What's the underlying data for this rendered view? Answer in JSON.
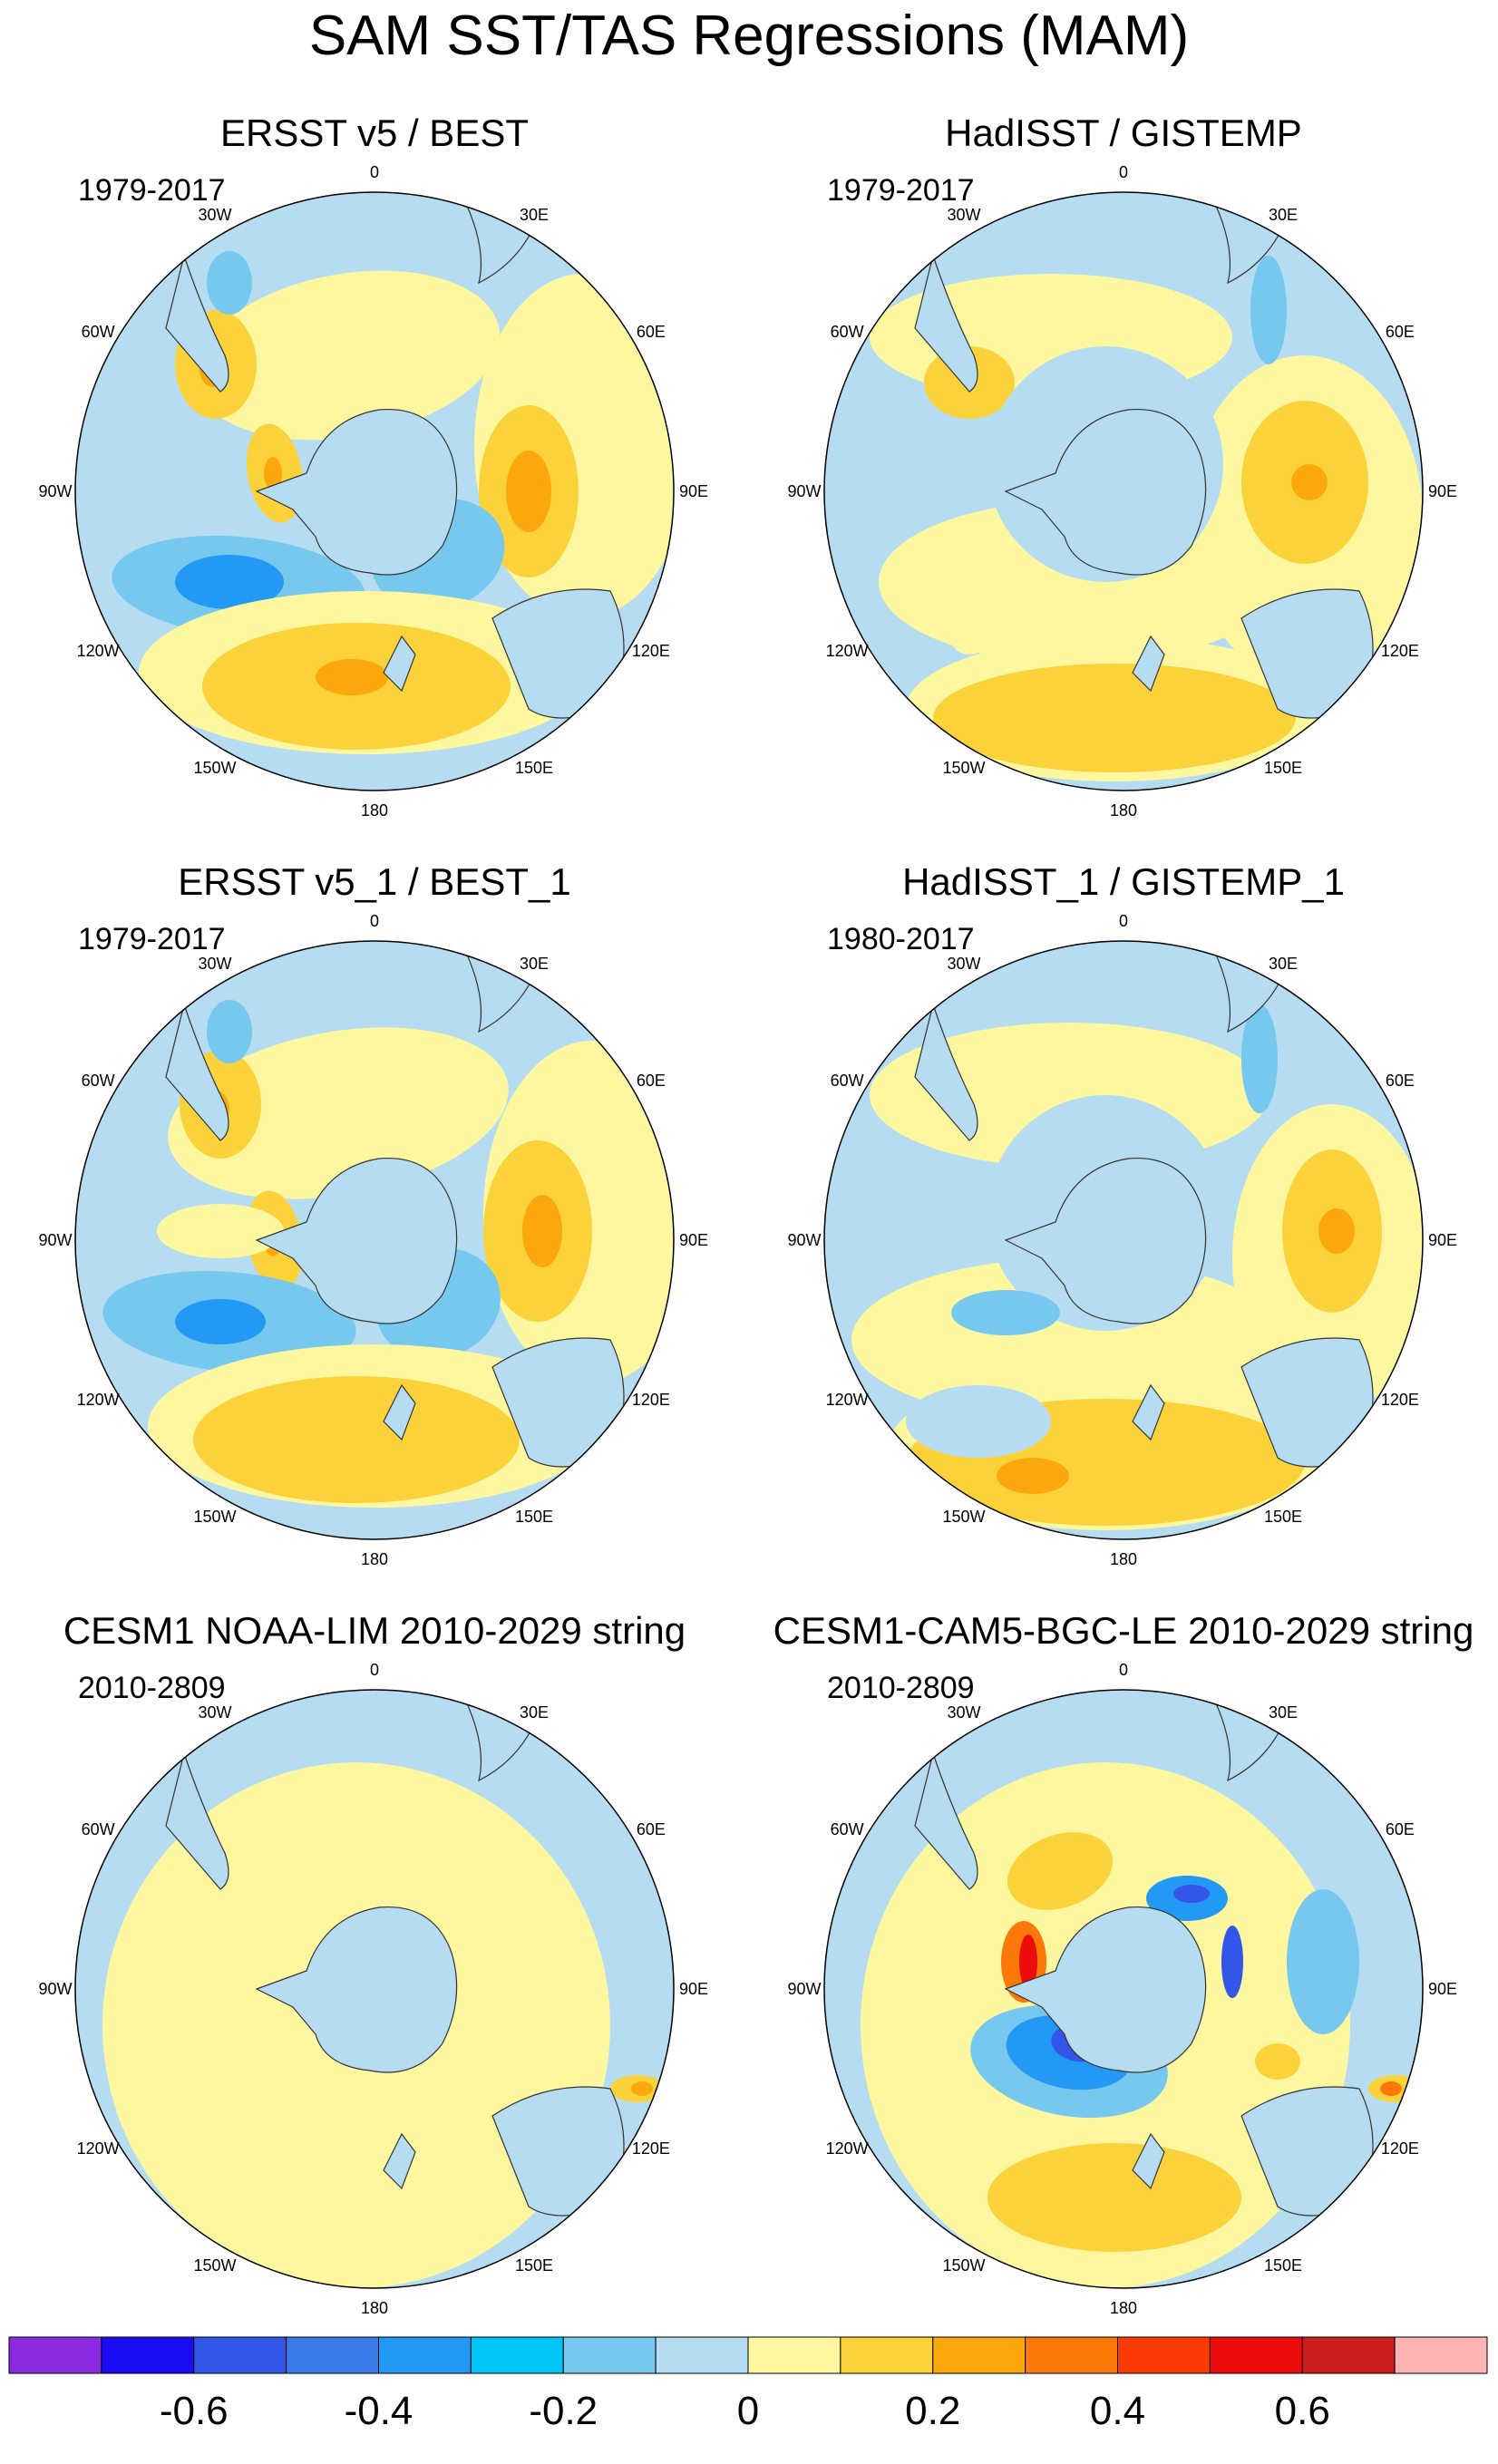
{
  "chart_data": {
    "type": "contour-map",
    "title": "SAM SST/TAS Regressions (MAM)",
    "projection": "south-polar-stereographic",
    "longitude_labels": [
      "0",
      "30E",
      "60E",
      "90E",
      "120E",
      "150E",
      "180",
      "150W",
      "120W",
      "90W",
      "60W",
      "30W"
    ],
    "panels": [
      {
        "title": "ERSST v5 / BEST",
        "period": "1979-2017"
      },
      {
        "title": "HadISST / GISTEMP",
        "period": "1979-2017"
      },
      {
        "title": "ERSST v5_1 / BEST_1",
        "period": "1979-2017"
      },
      {
        "title": "HadISST_1 / GISTEMP_1",
        "period": "1980-2017"
      },
      {
        "title": "CESM1 NOAA-LIM 2010-2029 string",
        "period": "2010-2809"
      },
      {
        "title": "CESM1-CAM5-BGC-LE 2010-2029 string",
        "period": "2010-2809"
      }
    ],
    "colorbar": {
      "tick_labels": [
        "-0.6",
        "-0.4",
        "-0.2",
        "0",
        "0.2",
        "0.4",
        "0.6"
      ],
      "tick_values": [
        -0.6,
        -0.4,
        -0.2,
        0,
        0.2,
        0.4,
        0.6
      ],
      "levels": [
        -0.7,
        -0.6,
        -0.5,
        -0.4,
        -0.3,
        -0.2,
        -0.1,
        0,
        0.1,
        0.2,
        0.3,
        0.4,
        0.5,
        0.6,
        0.7
      ],
      "colors": [
        "#8a2be2",
        "#1a0cf0",
        "#3355e8",
        "#3a7de8",
        "#2299f5",
        "#00c4f5",
        "#77c8ee",
        "#b5dcf0",
        "#fdf8a0",
        "#fcd23a",
        "#fca80c",
        "#fc7808",
        "#fc3c04",
        "#ec0c0c",
        "#cc1c1c",
        "#fcb4b4"
      ]
    }
  }
}
